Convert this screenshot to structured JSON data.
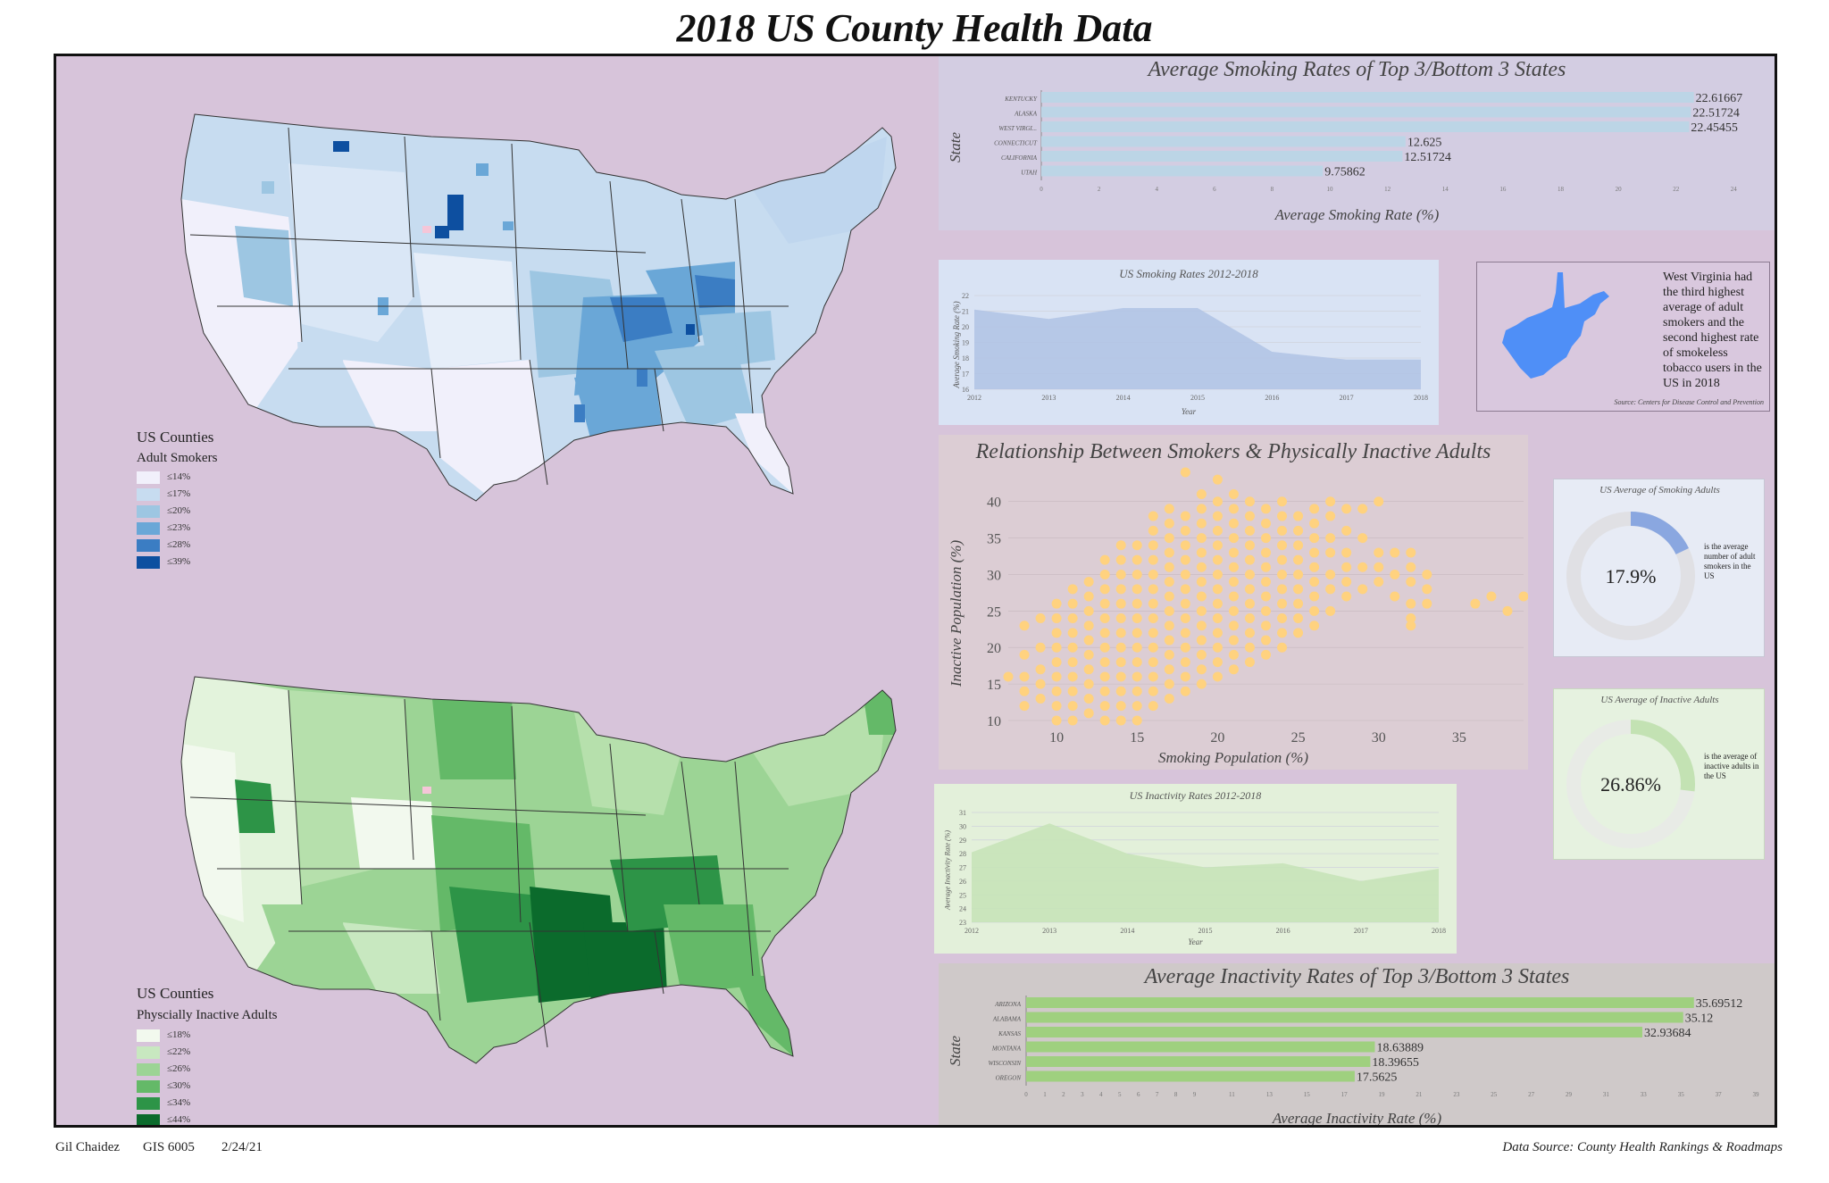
{
  "title": "2018 US County Health Data",
  "footer": {
    "author": "Gil Chaidez",
    "course": "GIS 6005",
    "date": "2/24/21",
    "source": "Data Source: County Health Rankings & Roadmaps"
  },
  "colors": {
    "frame_bg": "#d7c4da",
    "smoke_bar": "#bcd5e6",
    "inactive_bar": "#9fd07f",
    "scatter_point": "#ffd27f",
    "wv_state": "#4f8ff7"
  },
  "map_smokers": {
    "legend_title": "US Counties",
    "legend_subtitle": "Adult Smokers",
    "classes": [
      {
        "label": "≤14%",
        "color": "#f1f0fb"
      },
      {
        "label": "≤17%",
        "color": "#c7dcf0"
      },
      {
        "label": "≤20%",
        "color": "#9dc6e2"
      },
      {
        "label": "≤23%",
        "color": "#6aa7d7"
      },
      {
        "label": "≤28%",
        "color": "#3b7dc3"
      },
      {
        "label": "≤39%",
        "color": "#0d4fa0"
      }
    ]
  },
  "map_inactive": {
    "legend_title": "US Counties",
    "legend_subtitle": "Physcially Inactive Adults",
    "classes": [
      {
        "label": "≤18%",
        "color": "#f2f9ee"
      },
      {
        "label": "≤22%",
        "color": "#c8e8c0"
      },
      {
        "label": "≤26%",
        "color": "#9cd495"
      },
      {
        "label": "≤30%",
        "color": "#64b968"
      },
      {
        "label": "≤34%",
        "color": "#2d9447"
      },
      {
        "label": "≤44%",
        "color": "#0b6b2c"
      }
    ]
  },
  "wv_callout": {
    "text": "West Virginia had the third highest average of adult smokers and the second highest rate of smokeless tobacco users in the US in 2018",
    "source": "Source: Centers for Disease Control and Prevention"
  },
  "donut_smoking": {
    "title": "US Average of Smoking Adults",
    "value_label": "17.9%",
    "fraction": 0.179,
    "note": "is the average number of adult smokers in the US"
  },
  "donut_inactive": {
    "title": "US Average of Inactive Adults",
    "value_label": "26.86%",
    "fraction": 0.2686,
    "note": "is the average of inactive adults in the US"
  },
  "chart_data": [
    {
      "id": "smoking_bar",
      "type": "bar",
      "orientation": "horizontal",
      "title": "Average Smoking Rates of Top 3/Bottom 3 States",
      "xlabel": "Average Smoking Rate (%)",
      "ylabel": "State",
      "categories": [
        "KENTUCKY",
        "ALASKA",
        "WEST VIRGI...",
        "CONNECTICUT",
        "CALIFORNIA",
        "UTAH"
      ],
      "values": [
        22.61667,
        22.51724,
        22.45455,
        12.625,
        12.51724,
        9.75862
      ],
      "value_labels": [
        "22.61667",
        "22.51724",
        "22.45455",
        "12.625",
        "12.51724",
        "9.75862"
      ],
      "xticks": [
        "0",
        "2",
        "4",
        "6",
        "8",
        "10",
        "12",
        "14",
        "16",
        "18",
        "20",
        "22",
        "24"
      ],
      "xlim": [
        0,
        24.3
      ]
    },
    {
      "id": "smoking_trend",
      "type": "area",
      "title": "US Smoking Rates 2012-2018",
      "xlabel": "Year",
      "ylabel": "Average Smoking Rate (%)",
      "x": [
        "2012",
        "2013",
        "2014",
        "2015",
        "2016",
        "2017",
        "2018"
      ],
      "values": [
        21.1,
        20.5,
        21.2,
        21.2,
        18.4,
        17.9,
        17.9
      ],
      "yticks": [
        "16",
        "17",
        "18",
        "19",
        "20",
        "21",
        "22"
      ],
      "ylim": [
        16,
        22
      ]
    },
    {
      "id": "scatter",
      "type": "scatter",
      "title": "Relationship Between Smokers & Physically Inactive Adults",
      "xlabel": "Smoking Population (%)",
      "ylabel": "Inactive Population (%)",
      "xticks": [
        "10",
        "15",
        "20",
        "25",
        "30",
        "35"
      ],
      "yticks": [
        "10",
        "15",
        "20",
        "25",
        "30",
        "35",
        "40"
      ],
      "xlim": [
        7,
        39
      ],
      "ylim": [
        10,
        44
      ],
      "columns": [
        {
          "x": 7,
          "y": [
            16
          ]
        },
        {
          "x": 8,
          "y": [
            12,
            14,
            16,
            19,
            23
          ]
        },
        {
          "x": 9,
          "y": [
            13,
            15,
            17,
            20,
            24
          ]
        },
        {
          "x": 10,
          "y": [
            10,
            12,
            14,
            16,
            18,
            20,
            22,
            24,
            26
          ]
        },
        {
          "x": 11,
          "y": [
            10,
            12,
            14,
            16,
            18,
            20,
            22,
            24,
            26,
            28
          ]
        },
        {
          "x": 12,
          "y": [
            11,
            13,
            15,
            17,
            19,
            21,
            23,
            25,
            27,
            29
          ]
        },
        {
          "x": 13,
          "y": [
            10,
            12,
            14,
            16,
            18,
            20,
            22,
            24,
            26,
            28,
            30,
            32
          ]
        },
        {
          "x": 14,
          "y": [
            10,
            12,
            14,
            16,
            18,
            20,
            22,
            24,
            26,
            28,
            30,
            32,
            34
          ]
        },
        {
          "x": 15,
          "y": [
            10,
            12,
            14,
            16,
            18,
            20,
            22,
            24,
            26,
            28,
            30,
            32,
            34
          ]
        },
        {
          "x": 16,
          "y": [
            12,
            14,
            16,
            18,
            20,
            22,
            24,
            26,
            28,
            30,
            32,
            34,
            36,
            38
          ]
        },
        {
          "x": 17,
          "y": [
            13,
            15,
            17,
            19,
            21,
            23,
            25,
            27,
            29,
            31,
            33,
            35,
            37,
            39
          ]
        },
        {
          "x": 18,
          "y": [
            14,
            16,
            18,
            20,
            22,
            24,
            26,
            28,
            30,
            32,
            34,
            36,
            38,
            44
          ]
        },
        {
          "x": 19,
          "y": [
            15,
            17,
            19,
            21,
            23,
            25,
            27,
            29,
            31,
            33,
            35,
            37,
            39,
            41
          ]
        },
        {
          "x": 20,
          "y": [
            16,
            18,
            20,
            22,
            24,
            26,
            28,
            30,
            32,
            34,
            36,
            38,
            40,
            43
          ]
        },
        {
          "x": 21,
          "y": [
            17,
            19,
            21,
            23,
            25,
            27,
            29,
            31,
            33,
            35,
            37,
            39,
            41
          ]
        },
        {
          "x": 22,
          "y": [
            18,
            20,
            22,
            24,
            26,
            28,
            30,
            32,
            34,
            36,
            38,
            40
          ]
        },
        {
          "x": 23,
          "y": [
            19,
            21,
            23,
            25,
            27,
            29,
            31,
            33,
            35,
            37,
            39
          ]
        },
        {
          "x": 24,
          "y": [
            20,
            22,
            24,
            26,
            28,
            30,
            32,
            34,
            36,
            38,
            40
          ]
        },
        {
          "x": 25,
          "y": [
            22,
            24,
            26,
            28,
            30,
            32,
            34,
            36,
            38
          ]
        },
        {
          "x": 26,
          "y": [
            23,
            25,
            27,
            29,
            31,
            33,
            35,
            37,
            39
          ]
        },
        {
          "x": 27,
          "y": [
            25,
            28,
            30,
            33,
            35,
            38,
            40
          ]
        },
        {
          "x": 28,
          "y": [
            27,
            29,
            31,
            33,
            36,
            39
          ]
        },
        {
          "x": 29,
          "y": [
            28,
            31,
            35,
            39
          ]
        },
        {
          "x": 30,
          "y": [
            29,
            31,
            33,
            40
          ]
        },
        {
          "x": 31,
          "y": [
            27,
            30,
            33
          ]
        },
        {
          "x": 32,
          "y": [
            23,
            24,
            26,
            29,
            31,
            33
          ]
        },
        {
          "x": 33,
          "y": [
            26,
            28,
            30
          ]
        },
        {
          "x": 36,
          "y": [
            26
          ]
        },
        {
          "x": 37,
          "y": [
            27
          ]
        },
        {
          "x": 38,
          "y": [
            25
          ]
        },
        {
          "x": 39,
          "y": [
            27
          ]
        }
      ]
    },
    {
      "id": "inactivity_trend",
      "type": "area",
      "title": "US Inactivity Rates 2012-2018",
      "xlabel": "Year",
      "ylabel": "Average Inactivity Rate (%)",
      "x": [
        "2012",
        "2013",
        "2014",
        "2015",
        "2016",
        "2017",
        "2018"
      ],
      "values": [
        28.1,
        30.2,
        28.0,
        27.0,
        27.3,
        26.0,
        26.9
      ],
      "yticks": [
        "23",
        "24",
        "25",
        "26",
        "27",
        "28",
        "29",
        "30",
        "31"
      ],
      "ylim": [
        23,
        31
      ]
    },
    {
      "id": "inactivity_bar",
      "type": "bar",
      "orientation": "horizontal",
      "title": "Average Inactivity Rates of Top 3/Bottom 3 States",
      "xlabel": "Average Inactivity Rate (%)",
      "ylabel": "State",
      "categories": [
        "ARIZONA",
        "ALABAMA",
        "KANSAS",
        "MONTANA",
        "WISCONSIN",
        "OREGON"
      ],
      "values": [
        35.69512,
        35.12,
        32.93684,
        18.63889,
        18.39655,
        17.5625
      ],
      "value_labels": [
        "35.69512",
        "35.12",
        "32.93684",
        "18.63889",
        "18.39655",
        "17.5625"
      ],
      "xticks": [
        "0",
        "1",
        "2",
        "3",
        "4",
        "5",
        "6",
        "7",
        "8",
        "9",
        "11",
        "13",
        "15",
        "17",
        "19",
        "21",
        "23",
        "25",
        "27",
        "29",
        "31",
        "33",
        "35",
        "37",
        "39"
      ],
      "xlim": [
        0,
        39
      ]
    }
  ]
}
